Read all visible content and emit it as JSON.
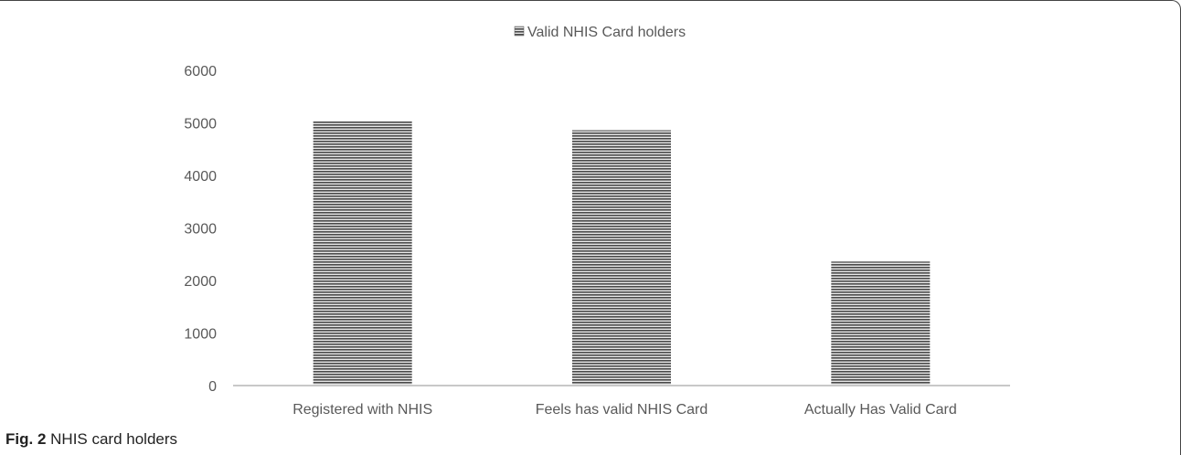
{
  "chart_data": {
    "type": "bar",
    "categories": [
      "Registered with NHIS",
      "Feels has valid NHIS Card",
      "Actually Has Valid Card"
    ],
    "series": [
      {
        "name": "Valid NHIS Card holders",
        "values": [
          5030,
          4860,
          2360
        ],
        "color": "#555555"
      }
    ],
    "yticks": [
      "0",
      "1000",
      "2000",
      "3000",
      "4000",
      "5000",
      "6000"
    ],
    "ylim": [
      0,
      6000
    ],
    "grid": false,
    "legend_position": "top"
  },
  "caption": {
    "label": "Fig. 2",
    "text": "NHIS card holders"
  }
}
